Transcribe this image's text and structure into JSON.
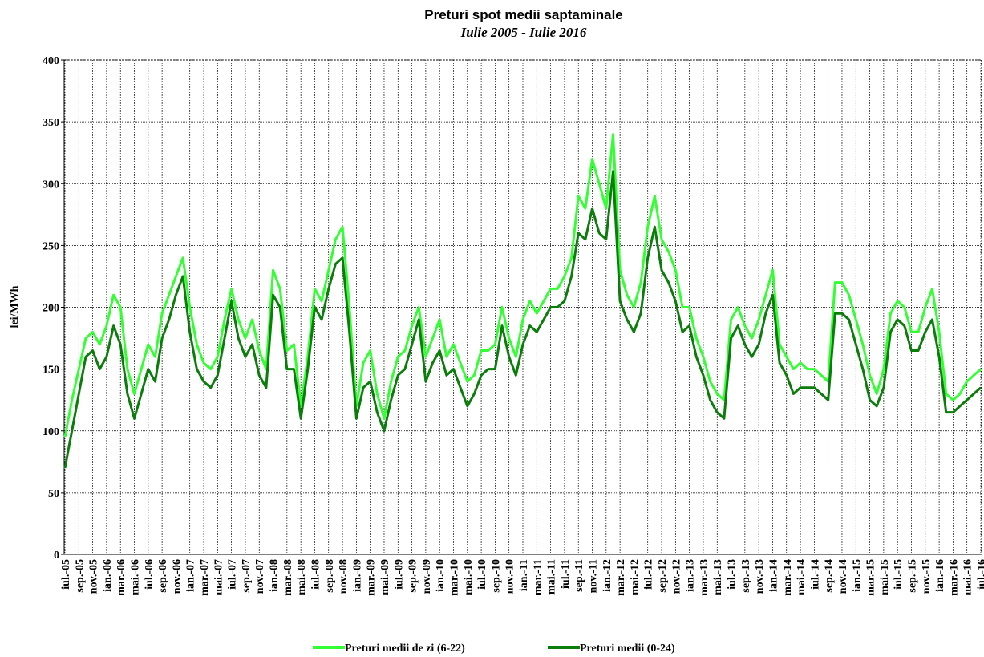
{
  "chart_data": {
    "type": "line",
    "title": "Preturi spot medii saptaminale",
    "subtitle": "Iulie 2005 - Iulie 2016",
    "y_label": "lei/MWh",
    "categories": [
      "iul.-05",
      null,
      "sep.-05",
      null,
      "nov.-05",
      null,
      "ian.-06",
      null,
      "mar.-06",
      null,
      "mai.-06",
      null,
      "iul.-06",
      null,
      "sep.-06",
      null,
      "nov.-06",
      null,
      "ian.-07",
      null,
      "mar.-07",
      null,
      "mai.-07",
      null,
      "iul.-07",
      null,
      "sep.-07",
      null,
      "nov.-07",
      null,
      "ian.-08",
      null,
      "mar.-08",
      null,
      "mai.-08",
      null,
      "iul.-08",
      null,
      "sep.-08",
      null,
      "nov.-08",
      null,
      "ian.-09",
      null,
      "mar.-09",
      null,
      "mai.-09",
      null,
      "iul.-09",
      null,
      "sep.-09",
      null,
      "nov.-09",
      null,
      "ian.-10",
      null,
      "mar.-10",
      null,
      "mai.-10",
      null,
      "iul.-10",
      null,
      "sep.-10",
      null,
      "nov.-10",
      null,
      "ian.-11",
      null,
      "mar.-11",
      null,
      "mai.-11",
      null,
      "iul.-11",
      null,
      "sep.-11",
      null,
      "nov.-11",
      null,
      "ian.-12",
      null,
      "mar.-12",
      null,
      "mai.-12",
      null,
      "iul.-12",
      null,
      "sep.-12",
      null,
      "nov.-12",
      null,
      "ian.-13",
      null,
      "mar.-13",
      null,
      "mai.-13",
      null,
      "iul.-13",
      null,
      "sep.-13",
      null,
      "nov.-13",
      null,
      "ian.-14",
      null,
      "mar.-14",
      null,
      "mai.-14",
      null,
      "iul.-14",
      null,
      "sep.-14",
      null,
      "nov.-14",
      null,
      "ian.-15",
      null,
      "mar.-15",
      null,
      "mai.-15",
      null,
      "iul.-15",
      null,
      "sep.-15",
      null,
      "nov.-15",
      null,
      "ian.-16",
      null,
      "mar.-16",
      null,
      "mai.-16",
      null,
      "iul.-16"
    ],
    "series": [
      {
        "name": "Preturi medii de zi (6-22)",
        "color": "#33ff33",
        "values": [
          95,
          125,
          150,
          175,
          180,
          170,
          185,
          210,
          200,
          150,
          130,
          150,
          170,
          160,
          195,
          210,
          225,
          240,
          200,
          170,
          155,
          150,
          160,
          190,
          215,
          190,
          175,
          190,
          165,
          150,
          230,
          215,
          165,
          170,
          120,
          160,
          215,
          205,
          230,
          255,
          265,
          200,
          120,
          155,
          165,
          130,
          110,
          140,
          160,
          165,
          185,
          200,
          160,
          175,
          190,
          160,
          170,
          155,
          140,
          145,
          165,
          165,
          170,
          200,
          175,
          160,
          190,
          205,
          195,
          205,
          215,
          215,
          225,
          240,
          290,
          280,
          320,
          300,
          280,
          340,
          230,
          210,
          200,
          220,
          265,
          290,
          255,
          245,
          230,
          200,
          200,
          175,
          160,
          140,
          130,
          125,
          190,
          200,
          185,
          175,
          190,
          210,
          230,
          170,
          160,
          150,
          155,
          150,
          150,
          145,
          140,
          220,
          220,
          210,
          190,
          170,
          145,
          130,
          150,
          195,
          205,
          200,
          180,
          180,
          200,
          215,
          180,
          130,
          125,
          130,
          140,
          145,
          150
        ]
      },
      {
        "name": "Preturi medii (0-24)",
        "color": "#0a7d0a",
        "values": [
          70,
          100,
          130,
          160,
          165,
          150,
          160,
          185,
          170,
          130,
          110,
          130,
          150,
          140,
          175,
          190,
          210,
          225,
          180,
          150,
          140,
          135,
          145,
          175,
          205,
          175,
          160,
          170,
          145,
          135,
          210,
          200,
          150,
          150,
          110,
          150,
          200,
          190,
          215,
          235,
          240,
          180,
          110,
          135,
          140,
          115,
          100,
          125,
          145,
          150,
          170,
          190,
          140,
          155,
          165,
          145,
          150,
          135,
          120,
          130,
          145,
          150,
          150,
          185,
          160,
          145,
          170,
          185,
          180,
          190,
          200,
          200,
          205,
          225,
          260,
          255,
          280,
          260,
          255,
          310,
          205,
          190,
          180,
          195,
          240,
          265,
          230,
          220,
          205,
          180,
          185,
          160,
          145,
          125,
          115,
          110,
          175,
          185,
          170,
          160,
          170,
          195,
          210,
          155,
          145,
          130,
          135,
          135,
          135,
          130,
          125,
          195,
          195,
          190,
          170,
          150,
          125,
          120,
          135,
          180,
          190,
          185,
          165,
          165,
          180,
          190,
          160,
          115,
          115,
          120,
          125,
          130,
          135
        ]
      }
    ],
    "ylim": [
      0,
      400
    ],
    "yticks": [
      0,
      50,
      100,
      150,
      200,
      250,
      300,
      350,
      400
    ],
    "grid": true
  }
}
